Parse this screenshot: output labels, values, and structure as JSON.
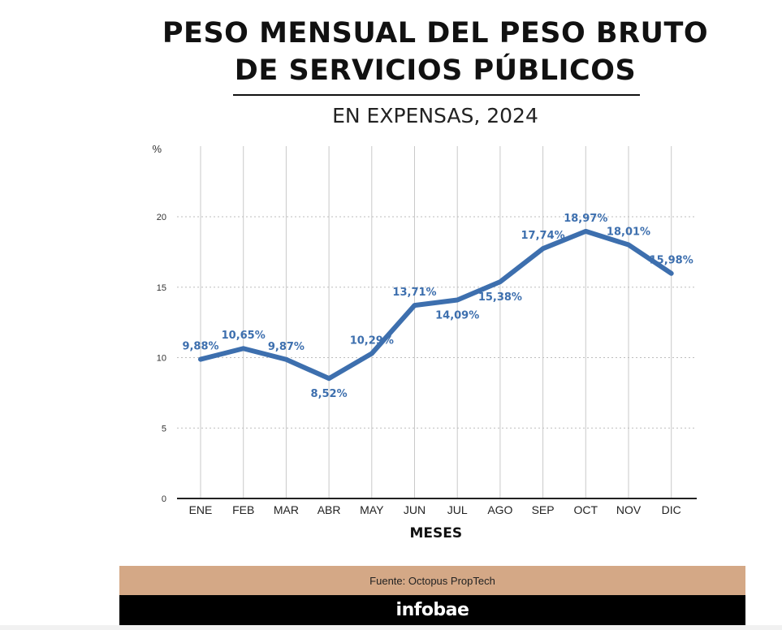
{
  "header": {
    "title_line1": "PESO MENSUAL DEL PESO BRUTO",
    "title_line2": "DE SERVICIOS PÚBLICOS",
    "subtitle": "EN EXPENSAS, 2024"
  },
  "footer": {
    "source": "Fuente: Octopus PropTech",
    "brand": "infobae",
    "source_bg": "#d4a886",
    "brand_bg": "#000000"
  },
  "chart_data": {
    "type": "line",
    "title": "PESO MENSUAL DEL PESO BRUTO DE SERVICIOS PÚBLICOS",
    "subtitle": "EN EXPENSAS, 2024",
    "xlabel": "MESES",
    "ylabel": "%",
    "categories": [
      "ENE",
      "FEB",
      "MAR",
      "ABR",
      "MAY",
      "JUN",
      "JUL",
      "AGO",
      "SEP",
      "OCT",
      "NOV",
      "DIC"
    ],
    "yticks": [
      "0",
      "5",
      "10",
      "15",
      "20"
    ],
    "ylim": [
      0,
      25
    ],
    "grid": "horizontal dotted, vertical solid",
    "series": [
      {
        "name": "Peso mensual",
        "color": "#3d6fae",
        "values": [
          9.88,
          10.65,
          9.87,
          8.52,
          10.29,
          13.71,
          14.09,
          15.38,
          17.74,
          18.97,
          18.01,
          15.98
        ],
        "labels": [
          "9,88%",
          "10,65%",
          "9,87%",
          "8,52%",
          "10,29%",
          "13,71%",
          "14,09%",
          "15,38%",
          "17,74%",
          "18,97%",
          "18,01%",
          "15,98%"
        ]
      }
    ]
  }
}
